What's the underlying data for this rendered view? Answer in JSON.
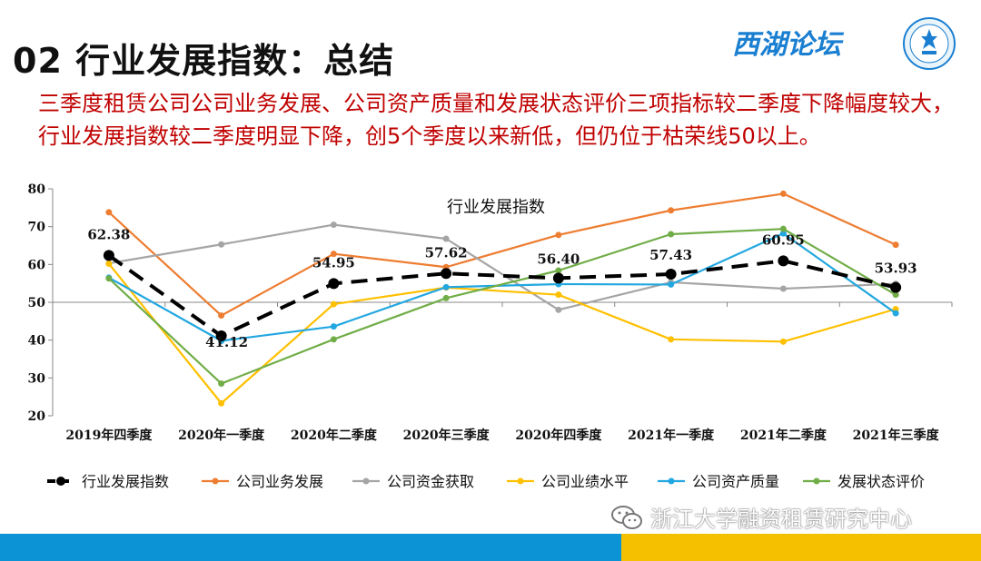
{
  "header": {
    "title": "02 行业发展指数：总结",
    "brand": "西湖论坛",
    "summary": "三季度租赁公司公司业务发展、公司资产质量和发展状态评价三项指标较二季度下降幅度较大，行业发展指数较二季度明显下降，创5个季度以来新低，但仍位于枯荣线50以上。"
  },
  "footer": {
    "watermark": "浙江大学融资租赁研究中心",
    "colors": {
      "blue": "#0b93d6",
      "yellow": "#f5c000"
    }
  },
  "chart_data": {
    "type": "line",
    "title": "行业发展指数",
    "xlabel": "",
    "ylabel": "",
    "ylim": [
      20,
      80
    ],
    "yticks": [
      20,
      30,
      40,
      50,
      60,
      70,
      80
    ],
    "baseline": 50,
    "legend_position": "bottom",
    "categories": [
      "2019年四季度",
      "2020年一季度",
      "2020年二季度",
      "2020年三季度",
      "2020年四季度",
      "2021年一季度",
      "2021年二季度",
      "2021年三季度"
    ],
    "series": [
      {
        "name": "行业发展指数",
        "color": "#000000",
        "dashed": true,
        "values": [
          62.38,
          41.12,
          54.95,
          57.62,
          56.4,
          57.43,
          60.95,
          53.93
        ],
        "labels": [
          "62.38",
          "41.12",
          "54.95",
          "57.62",
          "56.40",
          "57.43",
          "60.95",
          "53.93"
        ]
      },
      {
        "name": "公司业务发展",
        "color": "#ed7d31",
        "values": [
          73.8,
          46.5,
          62.8,
          59.3,
          67.8,
          74.3,
          78.7,
          65.2
        ]
      },
      {
        "name": "公司资金获取",
        "color": "#a5a5a5",
        "values": [
          60.3,
          65.3,
          70.5,
          66.8,
          48.0,
          55.3,
          53.6,
          54.9
        ]
      },
      {
        "name": "公司业绩水平",
        "color": "#ffc000",
        "values": [
          60.2,
          23.3,
          49.5,
          53.9,
          52.0,
          40.2,
          39.6,
          48.2
        ]
      },
      {
        "name": "公司资产质量",
        "color": "#22a7e0",
        "values": [
          56.5,
          39.8,
          43.6,
          54.0,
          54.8,
          54.7,
          68.2,
          47.1
        ]
      },
      {
        "name": "发展状态评价",
        "color": "#70ad47",
        "values": [
          56.3,
          28.5,
          40.2,
          51.1,
          58.4,
          68.0,
          69.4,
          52.0
        ]
      }
    ]
  }
}
